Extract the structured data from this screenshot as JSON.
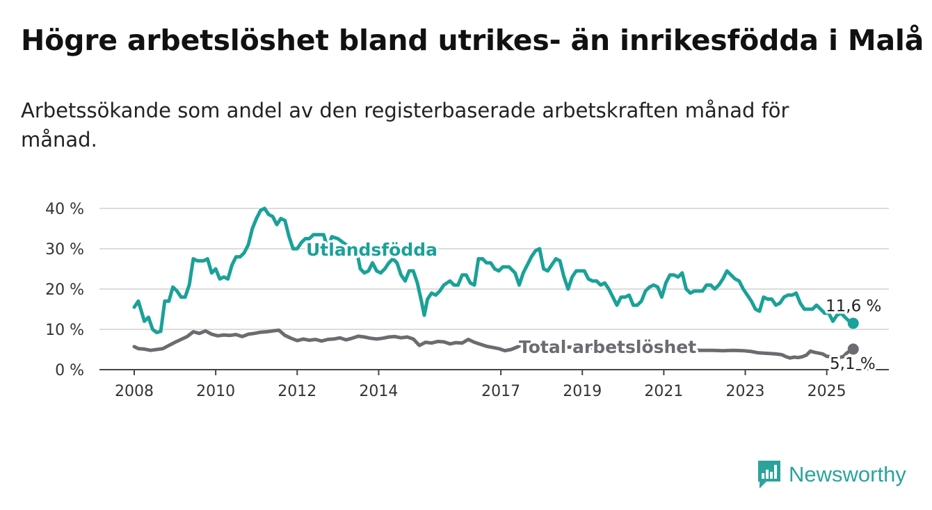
{
  "title": "Högre arbetslöshet bland utrikes- än inrikesfödda i Malå",
  "subtitle": "Arbetssökande som andel av den registerbaserade arbetskraften månad för månad.",
  "brand": {
    "name": "Newsworthy",
    "icon": "newsworthy-chart-bubble-icon"
  },
  "chart_data": {
    "type": "line",
    "ylim": [
      0,
      40
    ],
    "y_ticks": [
      0,
      10,
      20,
      30,
      40
    ],
    "y_tick_labels": [
      "0 %",
      "10 %",
      "20 %",
      "30 %",
      "40 %"
    ],
    "x_tick_labels": [
      "2008",
      "2010",
      "2012",
      "2014",
      "2017",
      "2019",
      "2021",
      "2023",
      "2025"
    ],
    "x_ticks": [
      2008.0,
      2010.0,
      2012.0,
      2014.0,
      2017.0,
      2019.0,
      2021.0,
      2023.0,
      2025.0
    ],
    "xlim": [
      2008.0,
      2025.33
    ],
    "grid": true,
    "series": [
      {
        "name": "Utlandsfödda",
        "color": "#1aa198",
        "end_label": "11,6 %",
        "points": [
          [
            2008.0,
            15.5
          ],
          [
            2008.1,
            17.0
          ],
          [
            2008.25,
            12.0
          ],
          [
            2008.35,
            13.0
          ],
          [
            2008.45,
            10.0
          ],
          [
            2008.55,
            9.2
          ],
          [
            2008.65,
            9.5
          ],
          [
            2008.75,
            17.0
          ],
          [
            2008.85,
            17.0
          ],
          [
            2008.95,
            20.5
          ],
          [
            2009.05,
            19.5
          ],
          [
            2009.15,
            18.0
          ],
          [
            2009.25,
            18.0
          ],
          [
            2009.35,
            21.0
          ],
          [
            2009.45,
            27.5
          ],
          [
            2009.55,
            27.0
          ],
          [
            2009.7,
            27.0
          ],
          [
            2009.8,
            27.5
          ],
          [
            2009.9,
            24.0
          ],
          [
            2010.0,
            25.0
          ],
          [
            2010.1,
            22.5
          ],
          [
            2010.2,
            23.0
          ],
          [
            2010.3,
            22.5
          ],
          [
            2010.4,
            26.0
          ],
          [
            2010.5,
            28.0
          ],
          [
            2010.6,
            28.0
          ],
          [
            2010.7,
            29.0
          ],
          [
            2010.8,
            31.0
          ],
          [
            2010.9,
            35.0
          ],
          [
            2011.0,
            37.5
          ],
          [
            2011.1,
            39.5
          ],
          [
            2011.2,
            40.0
          ],
          [
            2011.3,
            38.5
          ],
          [
            2011.4,
            38.0
          ],
          [
            2011.5,
            36.0
          ],
          [
            2011.6,
            37.5
          ],
          [
            2011.7,
            37.0
          ],
          [
            2011.8,
            33.0
          ],
          [
            2011.9,
            30.0
          ],
          [
            2012.0,
            30.0
          ],
          [
            2012.1,
            31.5
          ],
          [
            2012.2,
            32.5
          ],
          [
            2012.3,
            32.5
          ],
          [
            2012.4,
            33.5
          ],
          [
            2012.55,
            33.5
          ],
          [
            2012.65,
            33.5
          ],
          [
            2012.75,
            30.0
          ],
          [
            2012.85,
            33.0
          ],
          [
            2013.0,
            32.5
          ],
          [
            2013.2,
            31.0
          ],
          [
            2013.45,
            30.0
          ],
          [
            2013.55,
            25.0
          ],
          [
            2013.65,
            24.0
          ],
          [
            2013.75,
            24.5
          ],
          [
            2013.85,
            26.5
          ],
          [
            2013.95,
            24.5
          ],
          [
            2014.05,
            24.0
          ],
          [
            2014.15,
            25.0
          ],
          [
            2014.25,
            26.5
          ],
          [
            2014.35,
            27.5
          ],
          [
            2014.45,
            26.5
          ],
          [
            2014.55,
            23.5
          ],
          [
            2014.65,
            22.0
          ],
          [
            2014.75,
            24.5
          ],
          [
            2014.85,
            24.5
          ],
          [
            2014.95,
            21.5
          ],
          [
            2015.05,
            17.0
          ],
          [
            2015.12,
            13.5
          ],
          [
            2015.2,
            17.5
          ],
          [
            2015.3,
            19.0
          ],
          [
            2015.4,
            18.5
          ],
          [
            2015.5,
            19.5
          ],
          [
            2015.6,
            21.0
          ],
          [
            2015.75,
            22.0
          ],
          [
            2015.85,
            21.0
          ],
          [
            2015.95,
            21.0
          ],
          [
            2016.05,
            23.5
          ],
          [
            2016.15,
            23.5
          ],
          [
            2016.25,
            21.5
          ],
          [
            2016.35,
            21.0
          ],
          [
            2016.45,
            27.5
          ],
          [
            2016.55,
            27.5
          ],
          [
            2016.65,
            26.5
          ],
          [
            2016.75,
            26.5
          ],
          [
            2016.85,
            25.0
          ],
          [
            2016.95,
            24.5
          ],
          [
            2017.05,
            25.5
          ],
          [
            2017.2,
            25.5
          ],
          [
            2017.35,
            24.0
          ],
          [
            2017.45,
            21.0
          ],
          [
            2017.55,
            24.0
          ],
          [
            2017.65,
            26.0
          ],
          [
            2017.75,
            28.0
          ],
          [
            2017.85,
            29.5
          ],
          [
            2017.95,
            30.0
          ],
          [
            2018.05,
            25.0
          ],
          [
            2018.15,
            24.5
          ],
          [
            2018.25,
            26.0
          ],
          [
            2018.35,
            27.5
          ],
          [
            2018.45,
            27.0
          ],
          [
            2018.55,
            23.0
          ],
          [
            2018.65,
            20.0
          ],
          [
            2018.75,
            23.0
          ],
          [
            2018.85,
            24.5
          ],
          [
            2018.95,
            24.5
          ],
          [
            2019.05,
            24.5
          ],
          [
            2019.15,
            22.5
          ],
          [
            2019.25,
            22.0
          ],
          [
            2019.35,
            22.0
          ],
          [
            2019.45,
            21.0
          ],
          [
            2019.55,
            21.5
          ],
          [
            2019.65,
            20.0
          ],
          [
            2019.75,
            18.0
          ],
          [
            2019.85,
            16.0
          ],
          [
            2019.95,
            18.0
          ],
          [
            2020.05,
            18.0
          ],
          [
            2020.15,
            18.5
          ],
          [
            2020.25,
            16.0
          ],
          [
            2020.35,
            16.0
          ],
          [
            2020.45,
            17.0
          ],
          [
            2020.55,
            19.5
          ],
          [
            2020.65,
            20.5
          ],
          [
            2020.75,
            21.0
          ],
          [
            2020.85,
            20.5
          ],
          [
            2020.95,
            18.0
          ],
          [
            2021.05,
            21.5
          ],
          [
            2021.15,
            23.5
          ],
          [
            2021.25,
            23.5
          ],
          [
            2021.35,
            23.0
          ],
          [
            2021.45,
            24.0
          ],
          [
            2021.55,
            20.0
          ],
          [
            2021.65,
            19.0
          ],
          [
            2021.75,
            19.5
          ],
          [
            2021.85,
            19.5
          ],
          [
            2021.95,
            19.5
          ],
          [
            2022.05,
            21.0
          ],
          [
            2022.15,
            21.0
          ],
          [
            2022.25,
            20.0
          ],
          [
            2022.35,
            21.0
          ],
          [
            2022.45,
            22.5
          ],
          [
            2022.55,
            24.5
          ],
          [
            2022.65,
            23.5
          ],
          [
            2022.75,
            22.5
          ],
          [
            2022.85,
            22.0
          ],
          [
            2022.95,
            20.0
          ],
          [
            2023.05,
            18.5
          ],
          [
            2023.15,
            17.0
          ],
          [
            2023.25,
            15.0
          ],
          [
            2023.35,
            14.5
          ],
          [
            2023.45,
            18.0
          ],
          [
            2023.55,
            17.5
          ],
          [
            2023.65,
            17.5
          ],
          [
            2023.75,
            16.0
          ],
          [
            2023.85,
            16.5
          ],
          [
            2023.95,
            18.0
          ],
          [
            2024.05,
            18.5
          ],
          [
            2024.15,
            18.5
          ],
          [
            2024.25,
            19.0
          ],
          [
            2024.35,
            16.5
          ],
          [
            2024.45,
            15.0
          ],
          [
            2024.55,
            15.0
          ],
          [
            2024.65,
            15.0
          ],
          [
            2024.75,
            16.0
          ],
          [
            2024.85,
            15.0
          ],
          [
            2024.95,
            14.0
          ],
          [
            2025.05,
            14.0
          ],
          [
            2025.15,
            12.0
          ],
          [
            2025.25,
            13.5
          ],
          [
            2025.35,
            14.0
          ],
          [
            2025.45,
            13.0
          ],
          [
            2025.55,
            12.0
          ],
          [
            2025.65,
            11.5
          ]
        ]
      },
      {
        "name": "Total arbetslöshet",
        "color": "#6b6b70",
        "end_label": "5,1 %",
        "points": [
          [
            2008.0,
            5.7
          ],
          [
            2008.1,
            5.2
          ],
          [
            2008.25,
            5.1
          ],
          [
            2008.4,
            4.8
          ],
          [
            2008.55,
            5.0
          ],
          [
            2008.7,
            5.2
          ],
          [
            2008.85,
            6.0
          ],
          [
            2009.0,
            6.8
          ],
          [
            2009.15,
            7.5
          ],
          [
            2009.3,
            8.2
          ],
          [
            2009.45,
            9.4
          ],
          [
            2009.6,
            9.0
          ],
          [
            2009.75,
            9.6
          ],
          [
            2009.9,
            8.8
          ],
          [
            2010.05,
            8.4
          ],
          [
            2010.2,
            8.6
          ],
          [
            2010.35,
            8.5
          ],
          [
            2010.5,
            8.7
          ],
          [
            2010.65,
            8.2
          ],
          [
            2010.8,
            8.8
          ],
          [
            2010.95,
            9.0
          ],
          [
            2011.1,
            9.3
          ],
          [
            2011.25,
            9.4
          ],
          [
            2011.4,
            9.6
          ],
          [
            2011.55,
            9.8
          ],
          [
            2011.7,
            8.5
          ],
          [
            2011.85,
            7.8
          ],
          [
            2012.0,
            7.2
          ],
          [
            2012.15,
            7.6
          ],
          [
            2012.3,
            7.3
          ],
          [
            2012.45,
            7.5
          ],
          [
            2012.6,
            7.1
          ],
          [
            2012.75,
            7.5
          ],
          [
            2012.9,
            7.6
          ],
          [
            2013.05,
            7.9
          ],
          [
            2013.2,
            7.4
          ],
          [
            2013.35,
            7.8
          ],
          [
            2013.5,
            8.3
          ],
          [
            2013.65,
            8.1
          ],
          [
            2013.8,
            7.8
          ],
          [
            2013.95,
            7.6
          ],
          [
            2014.1,
            7.8
          ],
          [
            2014.25,
            8.1
          ],
          [
            2014.4,
            8.2
          ],
          [
            2014.55,
            7.9
          ],
          [
            2014.7,
            8.1
          ],
          [
            2014.85,
            7.6
          ],
          [
            2015.0,
            6.0
          ],
          [
            2015.15,
            6.8
          ],
          [
            2015.3,
            6.6
          ],
          [
            2015.45,
            7.0
          ],
          [
            2015.6,
            6.9
          ],
          [
            2015.75,
            6.4
          ],
          [
            2015.9,
            6.7
          ],
          [
            2016.05,
            6.6
          ],
          [
            2016.2,
            7.5
          ],
          [
            2016.35,
            6.8
          ],
          [
            2016.5,
            6.3
          ],
          [
            2016.65,
            5.8
          ],
          [
            2016.8,
            5.5
          ],
          [
            2016.95,
            5.2
          ],
          [
            2017.1,
            4.7
          ],
          [
            2017.25,
            5.0
          ],
          [
            2017.4,
            5.6
          ],
          [
            2017.55,
            6.4
          ],
          [
            2017.7,
            7.1
          ],
          [
            2017.85,
            6.3
          ],
          [
            2018.0,
            5.9
          ],
          [
            2018.3,
            5.8
          ],
          [
            2018.6,
            5.6
          ],
          [
            2018.9,
            5.5
          ],
          [
            2019.2,
            5.4
          ],
          [
            2019.5,
            5.4
          ],
          [
            2019.8,
            5.3
          ],
          [
            2020.1,
            5.2
          ],
          [
            2020.4,
            5.3
          ],
          [
            2020.7,
            5.1
          ],
          [
            2021.0,
            5.0
          ],
          [
            2021.3,
            5.1
          ],
          [
            2021.6,
            4.9
          ],
          [
            2021.9,
            4.8
          ],
          [
            2022.2,
            4.8
          ],
          [
            2022.45,
            4.7
          ],
          [
            2022.7,
            4.8
          ],
          [
            2022.95,
            4.7
          ],
          [
            2023.15,
            4.5
          ],
          [
            2023.3,
            4.2
          ],
          [
            2023.45,
            4.1
          ],
          [
            2023.6,
            4.0
          ],
          [
            2023.75,
            3.9
          ],
          [
            2023.9,
            3.7
          ],
          [
            2024.0,
            3.2
          ],
          [
            2024.1,
            2.9
          ],
          [
            2024.2,
            3.1
          ],
          [
            2024.3,
            3.0
          ],
          [
            2024.4,
            3.2
          ],
          [
            2024.5,
            3.6
          ],
          [
            2024.6,
            4.6
          ],
          [
            2024.7,
            4.3
          ],
          [
            2024.8,
            4.1
          ],
          [
            2024.9,
            3.9
          ],
          [
            2025.0,
            3.3
          ],
          [
            2025.1,
            3.2
          ],
          [
            2025.2,
            3.1
          ],
          [
            2025.3,
            3.0
          ],
          [
            2025.4,
            3.2
          ],
          [
            2025.5,
            4.2
          ],
          [
            2025.6,
            4.8
          ],
          [
            2025.65,
            5.1
          ]
        ]
      }
    ]
  }
}
